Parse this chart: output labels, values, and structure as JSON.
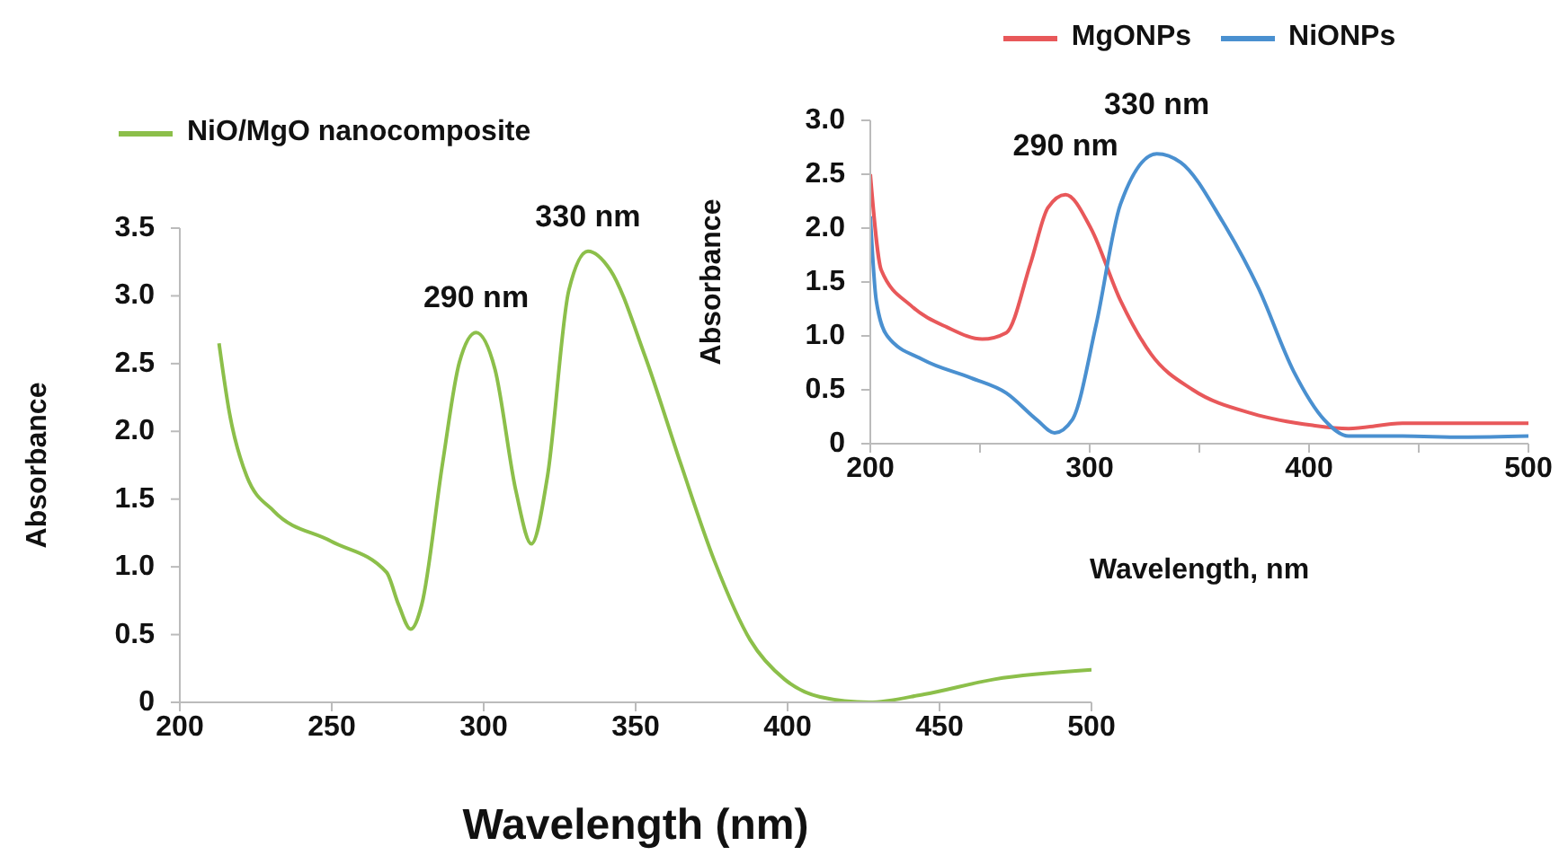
{
  "chart_data": [
    {
      "type": "line",
      "xlabel": "Wavelength (nm)",
      "ylabel": "Absorbance",
      "legend": "top left",
      "grid": false,
      "marker": "none",
      "line_style": "solid",
      "xlim": [
        200,
        500
      ],
      "xticks": [
        200,
        250,
        300,
        350,
        400,
        450,
        500
      ],
      "ylim": [
        0,
        3.5
      ],
      "yticks": [
        0,
        {
          "value": 0.5,
          "label": "0.5"
        },
        {
          "value": 1,
          "label": "1.0"
        },
        {
          "value": 1.5,
          "label": "1.5"
        },
        {
          "value": 2,
          "label": "2.0"
        },
        {
          "value": 2.5,
          "label": "2.5"
        },
        {
          "value": 3,
          "label": "3.0"
        },
        {
          "value": 3.5,
          "label": "3.5"
        }
      ],
      "annotations": [
        {
          "text": "290 nm",
          "x": 297.5,
          "y": 2.73
        },
        {
          "text": "330 nm",
          "x": 334.3,
          "y": 3.33
        }
      ],
      "series": [
        {
          "name": "NiO/MgO nanocomposite",
          "color": "#8cbf4a",
          "x": [
            212.9,
            216.3,
            222,
            231,
            249.7,
            268,
            272,
            276,
            279.6,
            286.5,
            292,
            297.5,
            303.7,
            310.6,
            315.7,
            321,
            328,
            334.3,
            341.7,
            353,
            364.7,
            376,
            387.7,
            399,
            410.7,
            426.8,
            445,
            468,
            500
          ],
          "values": [
            2.65,
            2.14,
            1.67,
            1.41,
            1.19,
            0.96,
            0.72,
            0.54,
            0.72,
            1.77,
            2.51,
            2.73,
            2.46,
            1.56,
            1.17,
            1.67,
            3.04,
            3.33,
            3.19,
            2.56,
            1.77,
            1.04,
            0.46,
            0.17,
            0.04,
            0.0,
            0.06,
            0.17,
            0.24
          ]
        }
      ]
    },
    {
      "type": "line",
      "xlabel": "Wavelength, nm",
      "ylabel": "Absorbance",
      "legend": "top",
      "grid": false,
      "marker": "none",
      "line_style": "solid",
      "xlim": [
        200,
        500
      ],
      "xticks": [
        200,
        {
          "value": 250,
          "label": null
        },
        300,
        {
          "value": 350,
          "label": null
        },
        400,
        {
          "value": 450,
          "label": null
        },
        500
      ],
      "ylim": [
        0,
        3
      ],
      "yticks": [
        0,
        {
          "value": 0.5,
          "label": "0.5"
        },
        {
          "value": 1,
          "label": "1.0"
        },
        {
          "value": 1.5,
          "label": "1.5"
        },
        {
          "value": 2,
          "label": "2.0"
        },
        {
          "value": 2.5,
          "label": "2.5"
        },
        {
          "value": 3,
          "label": "3.0"
        }
      ],
      "annotations": [
        {
          "text": "290 nm",
          "x": 289,
          "y": 2.31
        },
        {
          "text": "330 nm",
          "x": 330.6,
          "y": 2.69
        }
      ],
      "series": [
        {
          "name": "MgONPs",
          "color": "#e8585a",
          "x": [
            200,
            205,
            218.6,
            235,
            251,
            262,
            273,
            281,
            289,
            300.5,
            314,
            328,
            347,
            374,
            401.6,
            418,
            442.6,
            500
          ],
          "values": [
            2.5,
            1.61,
            1.28,
            1.08,
            0.97,
            1.03,
            1.67,
            2.19,
            2.31,
            2.0,
            1.33,
            0.83,
            0.5,
            0.28,
            0.17,
            0.14,
            0.19,
            0.19
          ]
        },
        {
          "name": "NiONPs",
          "color": "#4a90d0",
          "x": [
            200,
            202.7,
            207.7,
            224,
            246,
            262,
            276,
            284,
            292,
            303,
            314,
            330.6,
            341.5,
            360.6,
            377,
            393,
            407,
            418,
            442.6,
            470,
            500
          ],
          "values": [
            2.11,
            1.33,
            1.0,
            0.78,
            0.61,
            0.47,
            0.22,
            0.1,
            0.22,
            1.11,
            2.22,
            2.69,
            2.61,
            2.06,
            1.44,
            0.67,
            0.22,
            0.07,
            0.07,
            0.06,
            0.07
          ]
        }
      ]
    }
  ]
}
